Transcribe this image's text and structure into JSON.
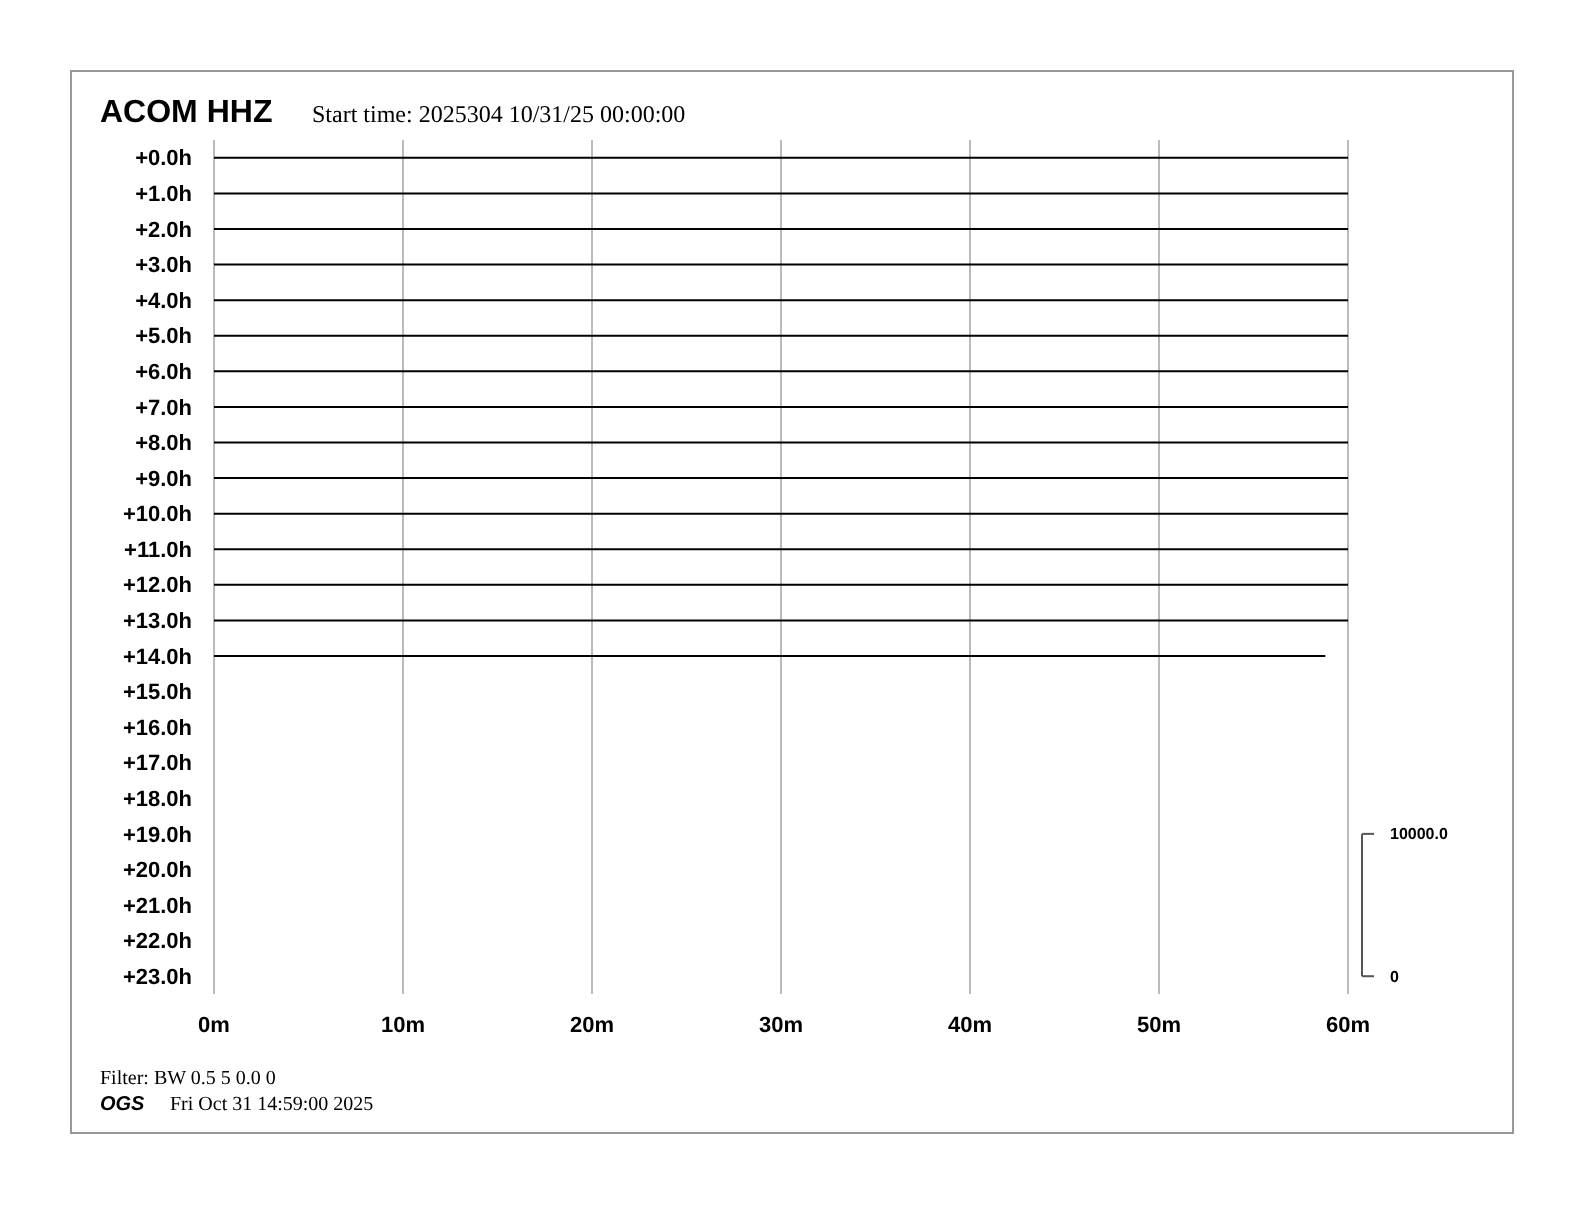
{
  "chart_data": {
    "type": "line",
    "title": "ACOM HHZ",
    "subtitle": "Start time: 2025304 10/31/25 00:00:00",
    "annotations": [
      "Filter: BW 0.5 5 0.0 0",
      "OGS",
      "Fri Oct 31 14:59:00 2025"
    ],
    "xlim": [
      0,
      60
    ],
    "xticks": [
      {
        "value": 0,
        "label": "0m"
      },
      {
        "value": 10,
        "label": "10m"
      },
      {
        "value": 20,
        "label": "20m"
      },
      {
        "value": 30,
        "label": "30m"
      },
      {
        "value": 40,
        "label": "40m"
      },
      {
        "value": 50,
        "label": "50m"
      },
      {
        "value": 60,
        "label": "60m"
      }
    ],
    "ylim": [
      23.5,
      -0.5
    ],
    "yticks": [
      {
        "value": 0,
        "label": "+0.0h"
      },
      {
        "value": 1,
        "label": "+1.0h"
      },
      {
        "value": 2,
        "label": "+2.0h"
      },
      {
        "value": 3,
        "label": "+3.0h"
      },
      {
        "value": 4,
        "label": "+4.0h"
      },
      {
        "value": 5,
        "label": "+5.0h"
      },
      {
        "value": 6,
        "label": "+6.0h"
      },
      {
        "value": 7,
        "label": "+7.0h"
      },
      {
        "value": 8,
        "label": "+8.0h"
      },
      {
        "value": 9,
        "label": "+9.0h"
      },
      {
        "value": 10,
        "label": "+10.0h"
      },
      {
        "value": 11,
        "label": "+11.0h"
      },
      {
        "value": 12,
        "label": "+12.0h"
      },
      {
        "value": 13,
        "label": "+13.0h"
      },
      {
        "value": 14,
        "label": "+14.0h"
      },
      {
        "value": 15,
        "label": "+15.0h"
      },
      {
        "value": 16,
        "label": "+16.0h"
      },
      {
        "value": 17,
        "label": "+17.0h"
      },
      {
        "value": 18,
        "label": "+18.0h"
      },
      {
        "value": 19,
        "label": "+19.0h"
      },
      {
        "value": 20,
        "label": "+20.0h"
      },
      {
        "value": 21,
        "label": "+21.0h"
      },
      {
        "value": 22,
        "label": "+22.0h"
      },
      {
        "value": 23,
        "label": "+23.0h"
      }
    ],
    "y2lim": [
      -1250,
      58750
    ],
    "y2ticks": [
      {
        "value": 0,
        "label": "0"
      },
      {
        "value": 10000,
        "label": "10000.0"
      }
    ],
    "grid": "x",
    "series": [
      {
        "color": "#000000",
        "x": [
          0,
          60
        ],
        "values": [
          0,
          0
        ]
      },
      {
        "color": "#000000",
        "x": [
          0,
          60
        ],
        "values": [
          1,
          1
        ]
      },
      {
        "color": "#000000",
        "x": [
          0,
          60
        ],
        "values": [
          2,
          2
        ]
      },
      {
        "color": "#000000",
        "x": [
          0,
          60
        ],
        "values": [
          3,
          3
        ]
      },
      {
        "color": "#000000",
        "x": [
          0,
          60
        ],
        "values": [
          4,
          4
        ]
      },
      {
        "color": "#000000",
        "x": [
          0,
          60
        ],
        "values": [
          5,
          5
        ]
      },
      {
        "color": "#000000",
        "x": [
          0,
          60
        ],
        "values": [
          6,
          6
        ]
      },
      {
        "color": "#000000",
        "x": [
          0,
          60
        ],
        "values": [
          7,
          7
        ]
      },
      {
        "color": "#000000",
        "x": [
          0,
          60
        ],
        "values": [
          8,
          8
        ]
      },
      {
        "color": "#000000",
        "x": [
          0,
          60
        ],
        "values": [
          9,
          9
        ]
      },
      {
        "color": "#000000",
        "x": [
          0,
          60
        ],
        "values": [
          10,
          10
        ]
      },
      {
        "color": "#000000",
        "x": [
          0,
          60
        ],
        "values": [
          11,
          11
        ]
      },
      {
        "color": "#000000",
        "x": [
          0,
          60
        ],
        "values": [
          12,
          12
        ]
      },
      {
        "color": "#000000",
        "x": [
          0,
          60
        ],
        "values": [
          13,
          13
        ]
      },
      {
        "color": "#000000",
        "x": [
          0,
          58.8
        ],
        "values": [
          14,
          14
        ]
      }
    ]
  }
}
